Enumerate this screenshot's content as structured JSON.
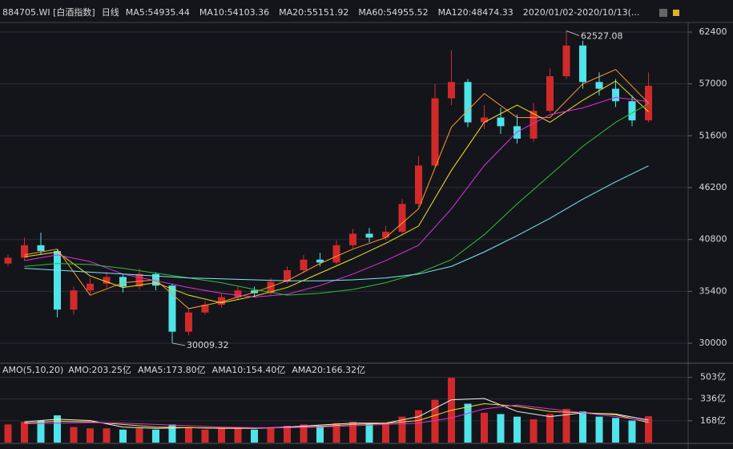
{
  "chart_data": [
    {
      "type": "candlestick",
      "title": "884705.WI [白酒指数]",
      "subtitle": "日线",
      "date_range": "2020/01/02-2020/10/13(...",
      "up_color": "#d22a2a",
      "down_color": "#4fe3ea",
      "open": [
        38300,
        38900,
        40200,
        39600,
        33500,
        35500,
        36200,
        36900,
        35900,
        37200,
        36000,
        31200,
        33200,
        34000,
        34800,
        35500,
        35200,
        36400,
        37600,
        38700,
        38400,
        40200,
        41400,
        41000,
        41600,
        44500,
        48500,
        55500,
        57200,
        53000,
        53500,
        52600,
        51300,
        54200,
        57800,
        61000,
        57200,
        56500,
        55200,
        53200
      ],
      "close": [
        38900,
        40200,
        39600,
        33500,
        35500,
        36200,
        36900,
        35900,
        37200,
        36000,
        31200,
        33200,
        34000,
        34800,
        35500,
        35200,
        36400,
        37600,
        38700,
        38400,
        40200,
        41400,
        41000,
        41600,
        44500,
        48500,
        55500,
        57200,
        53000,
        53500,
        52600,
        51300,
        54200,
        57800,
        61000,
        57200,
        56500,
        55200,
        53200,
        56800
      ],
      "high": [
        39200,
        41000,
        41500,
        39800,
        35900,
        36800,
        37400,
        37200,
        37800,
        37400,
        36200,
        33600,
        34400,
        35200,
        35900,
        35900,
        36800,
        38000,
        39200,
        39400,
        40700,
        41900,
        42000,
        42200,
        45000,
        49500,
        57000,
        60500,
        57500,
        54800,
        54500,
        53800,
        55000,
        58600,
        62527.08,
        61500,
        58200,
        57500,
        55800,
        58200
      ],
      "low": [
        38000,
        38600,
        39200,
        32700,
        33000,
        35000,
        35800,
        35300,
        35600,
        35500,
        30009.32,
        30800,
        33000,
        33700,
        34500,
        34800,
        35000,
        36200,
        37300,
        38000,
        38200,
        39900,
        40500,
        40700,
        41400,
        44200,
        48200,
        54800,
        52500,
        52300,
        51800,
        50800,
        51000,
        54000,
        57500,
        56500,
        55800,
        54600,
        52600,
        53000
      ],
      "series": [
        {
          "name": "MA5:54935.44",
          "color": "#ff9a2e",
          "values": [
            39200,
            39800,
            35000,
            36300,
            36600,
            33600,
            34300,
            35300,
            36500,
            38300,
            39800,
            41000,
            44000,
            52500,
            56000,
            53500,
            53500,
            57000,
            58500,
            55000
          ]
        },
        {
          "name": "MA10:54103.36",
          "color": "#f0e02a",
          "values": [
            39000,
            39500,
            37000,
            35800,
            36300,
            35000,
            34200,
            34900,
            35800,
            37300,
            38800,
            40400,
            42200,
            48000,
            53000,
            54800,
            53000,
            55300,
            57300,
            54100
          ]
        },
        {
          "name": "MA20:55151.92",
          "color": "#e030e0",
          "values": [
            38600,
            39200,
            38500,
            37200,
            36500,
            35800,
            35200,
            34800,
            35100,
            36000,
            37200,
            38600,
            40200,
            44000,
            48500,
            52000,
            53800,
            54500,
            55600,
            55150
          ]
        },
        {
          "name": "MA60:54955.52",
          "color": "#2fbf3a",
          "values": [
            38000,
            38300,
            38200,
            37800,
            37300,
            36800,
            36300,
            35600,
            35000,
            35200,
            35600,
            36300,
            37300,
            38700,
            41300,
            44500,
            47500,
            50500,
            53000,
            54950
          ]
        },
        {
          "name": "MA120:48474.33",
          "color": "#7ee8f0",
          "values": [
            37800,
            37600,
            37400,
            37200,
            37000,
            36800,
            36700,
            36600,
            36500,
            36500,
            36600,
            36800,
            37200,
            38000,
            39500,
            41200,
            43000,
            45000,
            46800,
            48474
          ]
        }
      ],
      "annotations": [
        "62527.08",
        "30009.32"
      ],
      "ylim": [
        28000,
        63400
      ],
      "yticks": [
        62400,
        57000,
        51600,
        46200,
        40800,
        35400,
        30000
      ],
      "grid": true
    },
    {
      "type": "bar",
      "title": "AMO(5,10,20)",
      "up_color": "#d22a2a",
      "down_color": "#4fe3ea",
      "bar_name": "AMO:203.25亿",
      "values": [
        140,
        160,
        170,
        210,
        120,
        110,
        110,
        100,
        110,
        100,
        140,
        120,
        100,
        110,
        110,
        100,
        120,
        130,
        140,
        130,
        150,
        160,
        150,
        150,
        200,
        250,
        330,
        500,
        300,
        230,
        220,
        200,
        180,
        220,
        260,
        240,
        200,
        190,
        170,
        203.25
      ],
      "series": [
        {
          "name": "AMA5:173.80亿",
          "color": "#f4f4f4",
          "values": [
            160,
            180,
            170,
            120,
            110,
            115,
            110,
            110,
            120,
            135,
            150,
            150,
            200,
            330,
            340,
            240,
            200,
            230,
            220,
            173.8
          ]
        },
        {
          "name": "AMA10:154.40亿",
          "color": "#f0e02a",
          "values": [
            150,
            165,
            160,
            140,
            120,
            115,
            112,
            112,
            115,
            125,
            140,
            148,
            170,
            250,
            300,
            280,
            240,
            230,
            215,
            154.4
          ]
        },
        {
          "name": "AMA20:166.32亿",
          "color": "#e030e0",
          "values": [
            145,
            150,
            155,
            150,
            140,
            130,
            120,
            115,
            115,
            120,
            130,
            140,
            150,
            190,
            260,
            290,
            260,
            230,
            200,
            166.32
          ]
        }
      ],
      "ylim": [
        0,
        600
      ],
      "yticks": [
        {
          "value": 503,
          "label": "503亿"
        },
        {
          "value": 336,
          "label": "336亿"
        },
        {
          "value": 168,
          "label": "168亿"
        }
      ],
      "grid": true
    }
  ]
}
